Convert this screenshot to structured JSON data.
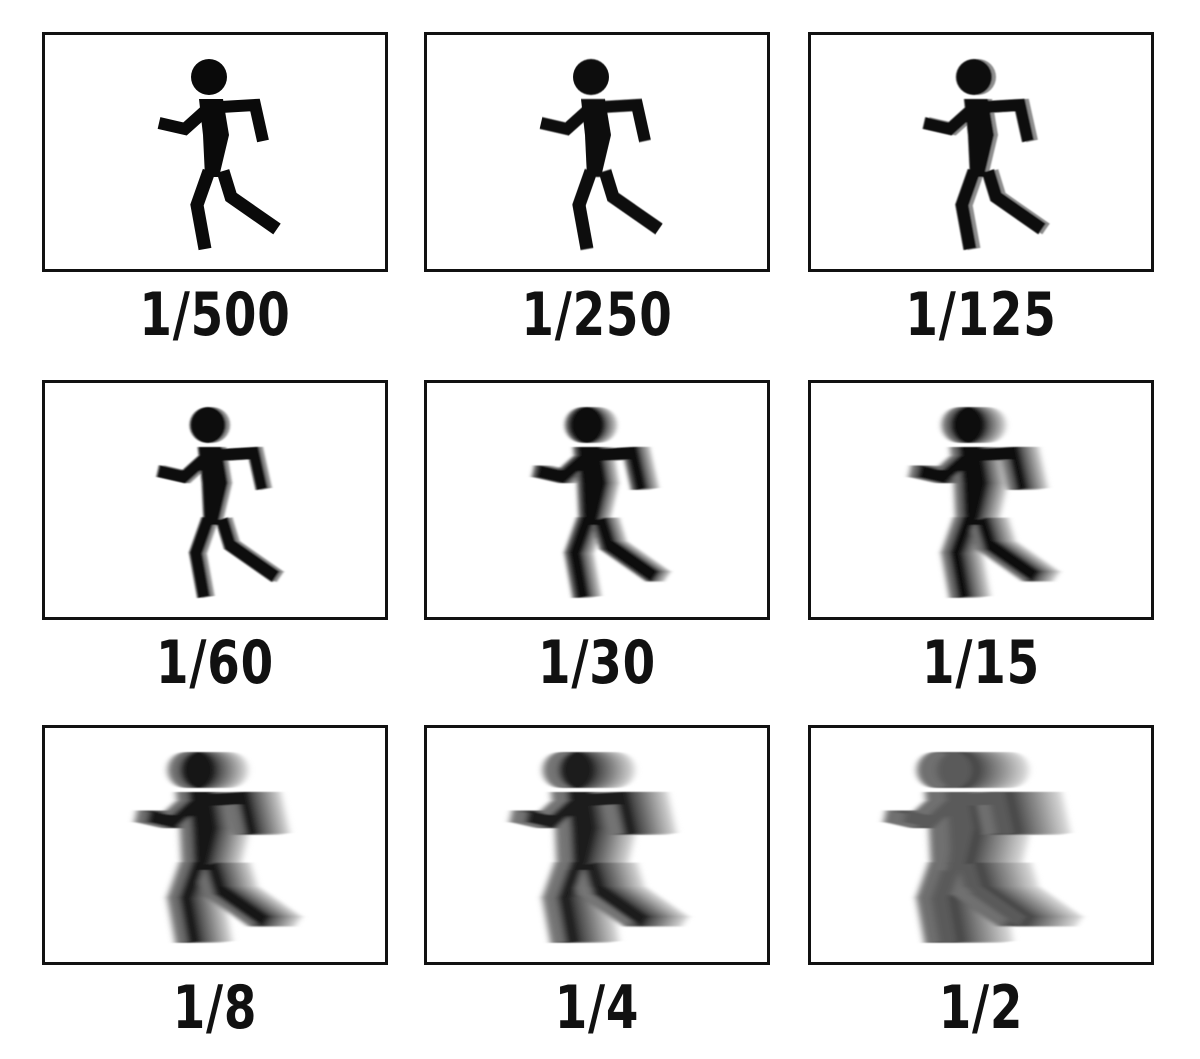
{
  "panels": [
    {
      "label": "1/500",
      "blur": 0,
      "ghost_count": 0,
      "figure_color": "#0a0a0a"
    },
    {
      "label": "1/250",
      "blur": 0.3,
      "ghost_count": 0,
      "figure_color": "#0a0a0a"
    },
    {
      "label": "1/125",
      "blur": 0.8,
      "ghost_count": 1,
      "figure_color": "#0a0a0a"
    },
    {
      "label": "1/60",
      "blur": 1.2,
      "ghost_count": 1,
      "figure_color": "#0a0a0a"
    },
    {
      "label": "1/30",
      "blur": 2.0,
      "ghost_count": 3,
      "figure_color": "#0a0a0a"
    },
    {
      "label": "1/15",
      "blur": 3.0,
      "ghost_count": 5,
      "figure_color": "#0a0a0a"
    },
    {
      "label": "1/8",
      "blur": 3.5,
      "ghost_count": 8,
      "figure_color": "#151515"
    },
    {
      "label": "1/4",
      "blur": 3.5,
      "ghost_count": 10,
      "figure_color": "#1c1c1c"
    },
    {
      "label": "1/2",
      "blur": 3.5,
      "ghost_count": 14,
      "figure_color": "#5a5a5a"
    }
  ],
  "icons": {
    "figure": "running-person-icon"
  },
  "colors": {
    "frame_border": "#111111",
    "label_text": "#111111",
    "ghost_dark": "#333333",
    "ghost_light": "#e6e6e6"
  }
}
